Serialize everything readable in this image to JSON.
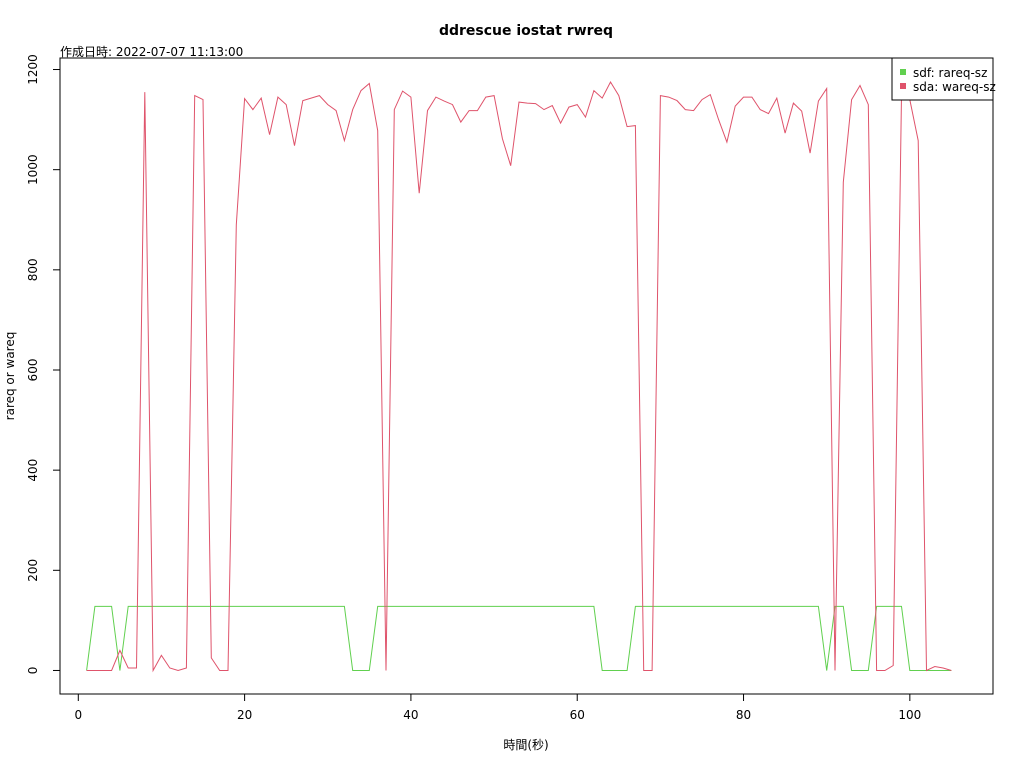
{
  "chart_data": {
    "type": "line",
    "title": "ddrescue iostat rwreq",
    "subtitle": "作成日時: 2022-07-07 11:13:00",
    "xlabel": "時間(秒)",
    "ylabel": "rareq or wareq",
    "xlim": [
      -2.2,
      110
    ],
    "ylim": [
      -47,
      1223
    ],
    "x_ticks": [
      0,
      20,
      40,
      60,
      80,
      100
    ],
    "y_ticks": [
      0,
      200,
      400,
      600,
      800,
      1000,
      1200
    ],
    "grid": false,
    "legend": {
      "position": "top-right"
    },
    "series": [
      {
        "name": "sdf: rareq-sz",
        "color": "#61d04f",
        "x": [
          1,
          2,
          3,
          4,
          5,
          6,
          7,
          8,
          9,
          10,
          11,
          12,
          13,
          14,
          15,
          16,
          17,
          18,
          19,
          20,
          21,
          22,
          23,
          24,
          25,
          26,
          27,
          28,
          29,
          30,
          31,
          32,
          33,
          34,
          35,
          36,
          37,
          38,
          39,
          40,
          41,
          42,
          43,
          44,
          45,
          46,
          47,
          48,
          49,
          50,
          51,
          52,
          53,
          54,
          55,
          56,
          57,
          58,
          59,
          60,
          61,
          62,
          63,
          64,
          65,
          66,
          67,
          68,
          69,
          70,
          71,
          72,
          73,
          74,
          75,
          76,
          77,
          78,
          79,
          80,
          81,
          82,
          83,
          84,
          85,
          86,
          87,
          88,
          89,
          90,
          91,
          92,
          93,
          94,
          95,
          96,
          97,
          98,
          99,
          100,
          101,
          102,
          103,
          104,
          105
        ],
        "y": [
          0,
          128,
          128,
          128,
          0,
          128,
          128,
          128,
          128,
          128,
          128,
          128,
          128,
          128,
          128,
          128,
          128,
          128,
          128,
          128,
          128,
          128,
          128,
          128,
          128,
          128,
          128,
          128,
          128,
          128,
          128,
          128,
          0,
          0,
          0,
          128,
          128,
          128,
          128,
          128,
          128,
          128,
          128,
          128,
          128,
          128,
          128,
          128,
          128,
          128,
          128,
          128,
          128,
          128,
          128,
          128,
          128,
          128,
          128,
          128,
          128,
          128,
          0,
          0,
          0,
          0,
          128,
          128,
          128,
          128,
          128,
          128,
          128,
          128,
          128,
          128,
          128,
          128,
          128,
          128,
          128,
          128,
          128,
          128,
          128,
          128,
          128,
          128,
          128,
          0,
          128,
          128,
          0,
          0,
          0,
          128,
          128,
          128,
          128,
          0,
          0,
          0,
          0,
          0,
          0
        ]
      },
      {
        "name": "sda: wareq-sz",
        "color": "#df536b",
        "x": [
          1,
          2,
          3,
          4,
          5,
          6,
          7,
          8,
          9,
          10,
          11,
          12,
          13,
          14,
          15,
          16,
          17,
          18,
          19,
          20,
          21,
          22,
          23,
          24,
          25,
          26,
          27,
          28,
          29,
          30,
          31,
          32,
          33,
          34,
          35,
          36,
          37,
          38,
          39,
          40,
          41,
          42,
          43,
          44,
          45,
          46,
          47,
          48,
          49,
          50,
          51,
          52,
          53,
          54,
          55,
          56,
          57,
          58,
          59,
          60,
          61,
          62,
          63,
          64,
          65,
          66,
          67,
          68,
          69,
          70,
          71,
          72,
          73,
          74,
          75,
          76,
          77,
          78,
          79,
          80,
          81,
          82,
          83,
          84,
          85,
          86,
          87,
          88,
          89,
          90,
          91,
          92,
          93,
          94,
          95,
          96,
          97,
          98,
          99,
          100,
          101,
          102,
          103,
          104,
          105
        ],
        "y": [
          0,
          0,
          0,
          0,
          40,
          5,
          5,
          1155,
          0,
          30,
          5,
          0,
          5,
          1148,
          1140,
          25,
          0,
          0,
          890,
          1142,
          1120,
          1143,
          1070,
          1145,
          1130,
          1048,
          1138,
          1143,
          1148,
          1130,
          1118,
          1058,
          1120,
          1158,
          1172,
          1078,
          0,
          1120,
          1157,
          1145,
          953,
          1118,
          1145,
          1137,
          1130,
          1095,
          1118,
          1118,
          1145,
          1148,
          1062,
          1008,
          1135,
          1133,
          1132,
          1120,
          1128,
          1093,
          1125,
          1130,
          1105,
          1158,
          1143,
          1175,
          1148,
          1086,
          1088,
          0,
          0,
          1148,
          1145,
          1138,
          1120,
          1118,
          1140,
          1150,
          1100,
          1055,
          1127,
          1145,
          1145,
          1120,
          1112,
          1143,
          1073,
          1133,
          1117,
          1033,
          1137,
          1162,
          0,
          975,
          1140,
          1168,
          1130,
          0,
          0,
          10,
          1150,
          1140,
          1058,
          0,
          8,
          5,
          0
        ]
      }
    ]
  }
}
